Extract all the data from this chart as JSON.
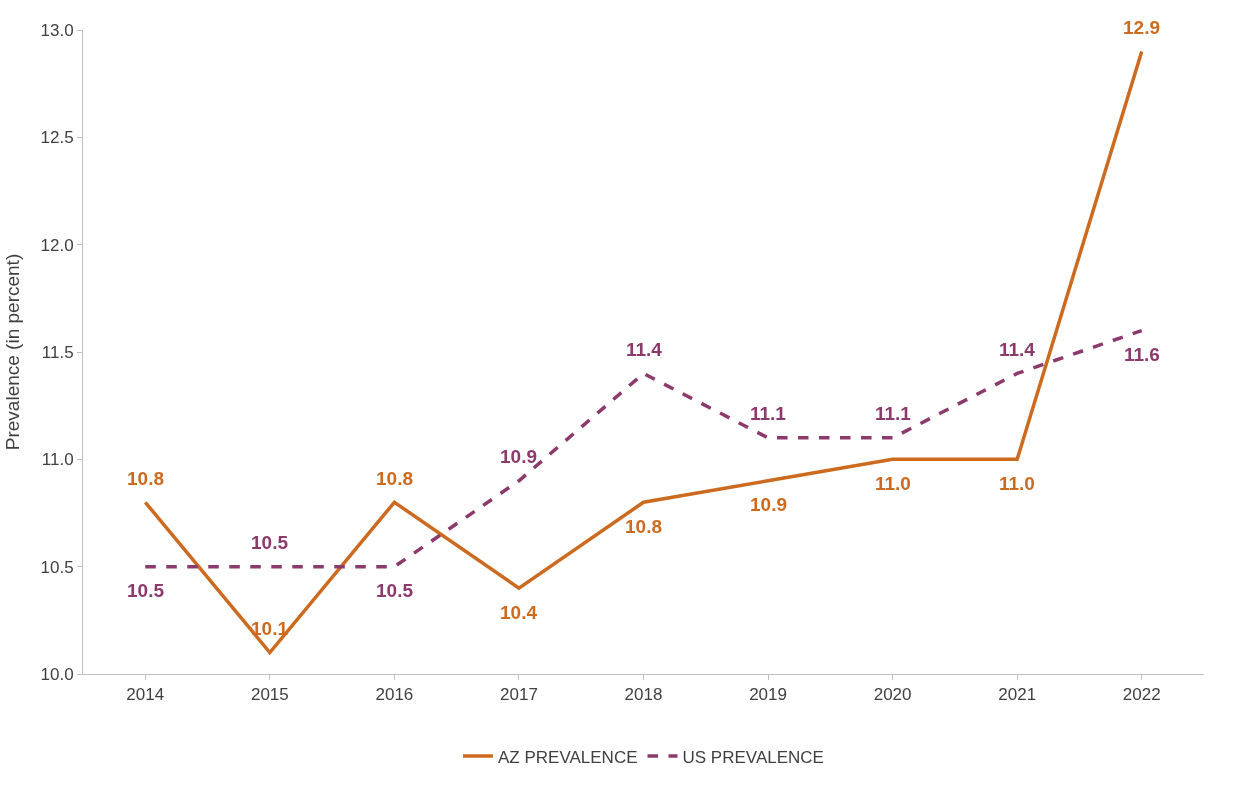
{
  "chart_data": {
    "type": "line",
    "ylabel": "Prevalence (in percent)",
    "categories": [
      "2014",
      "2015",
      "2016",
      "2017",
      "2018",
      "2019",
      "2020",
      "2021",
      "2022"
    ],
    "series": [
      {
        "name": "AZ PREVALENCE",
        "color": "#cc6a1f",
        "line_style": "solid",
        "values": [
          10.8,
          10.1,
          10.8,
          10.4,
          10.8,
          10.9,
          11.0,
          11.0,
          12.9
        ],
        "value_labels": [
          "10.8",
          "10.1",
          "10.8",
          "10.4",
          "10.8",
          "10.9",
          "11.0",
          "11.0",
          "12.9"
        ]
      },
      {
        "name": "US PREVALENCE",
        "color": "#8b3a6b",
        "line_style": "dashed",
        "values": [
          10.5,
          10.5,
          10.5,
          10.9,
          11.4,
          11.1,
          11.1,
          11.4,
          11.6
        ],
        "value_labels": [
          "10.5",
          "10.5",
          "10.5",
          "10.9",
          "11.4",
          "11.1",
          "11.1",
          "11.4",
          "11.6"
        ]
      }
    ],
    "ylim": [
      10.0,
      13.0
    ],
    "yticks": [
      {
        "value": 10.0,
        "label": "10.0"
      },
      {
        "value": 10.5,
        "label": "10.5"
      },
      {
        "value": 11.0,
        "label": "11.0"
      },
      {
        "value": 11.5,
        "label": "11.5"
      },
      {
        "value": 12.0,
        "label": "12.0"
      },
      {
        "value": 12.5,
        "label": "12.5"
      },
      {
        "value": 13.0,
        "label": "13.0"
      }
    ],
    "grid": false,
    "legend": "bottom",
    "marker": "none"
  }
}
